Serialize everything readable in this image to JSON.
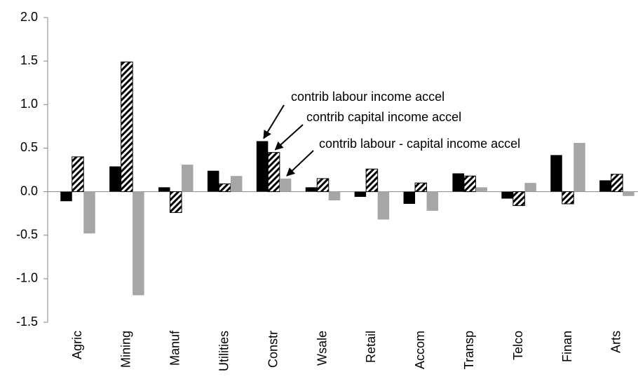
{
  "chart_data": {
    "type": "bar",
    "categories": [
      "Agric",
      "Mining",
      "Manuf",
      "Utilities",
      "Constr",
      "Wsale",
      "Retail",
      "Accom",
      "Transp",
      "Telco",
      "Finan",
      "Arts"
    ],
    "series": [
      {
        "name": "contrib labour income accel",
        "color": "#000000",
        "values": [
          -0.11,
          0.29,
          0.05,
          0.24,
          0.58,
          0.05,
          -0.06,
          -0.14,
          0.21,
          -0.08,
          0.42,
          0.13
        ]
      },
      {
        "name": "contrib capital income accel",
        "color": "#000000",
        "hatch": true,
        "values": [
          0.4,
          1.49,
          -0.24,
          0.09,
          0.45,
          0.15,
          0.26,
          0.1,
          0.18,
          -0.16,
          -0.14,
          0.2
        ]
      },
      {
        "name": "contrib labour - capital income accel",
        "color": "#a6a6a6",
        "values": [
          -0.48,
          -1.19,
          0.31,
          0.18,
          0.15,
          -0.1,
          -0.32,
          -0.22,
          0.05,
          0.1,
          0.56,
          -0.05
        ]
      }
    ],
    "ylim": [
      -1.5,
      2.0
    ],
    "yticks": [
      {
        "value": -1.5,
        "label": "-1.5"
      },
      {
        "value": -1,
        "label": "-1.0"
      },
      -0.5,
      {
        "value": 0,
        "label": "0.0"
      },
      0.5,
      {
        "value": 1,
        "label": "1.0"
      },
      1.5,
      {
        "value": 2,
        "label": "2.0"
      }
    ],
    "grid": false
  }
}
